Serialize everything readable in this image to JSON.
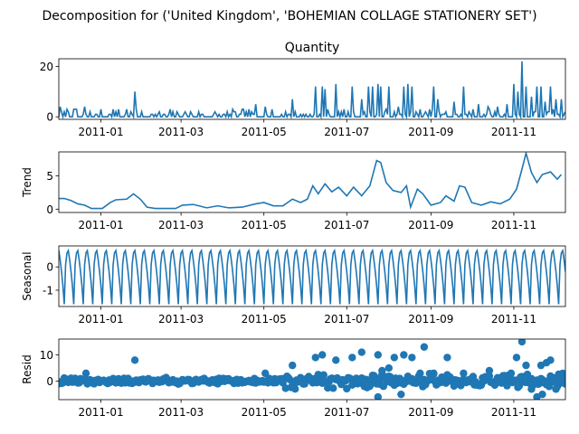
{
  "figure": {
    "suptitle": "Decomposition for ('United Kingdom', 'BOHEMIAN COLLAGE STATIONERY SET')",
    "line_color": "#1f77b4",
    "x_tick_labels": [
      "2011-01",
      "2011-03",
      "2011-05",
      "2011-07",
      "2011-09",
      "2011-11"
    ]
  },
  "chart_data": [
    {
      "type": "line",
      "title": "Quantity",
      "ylabel": "",
      "x_start": "2010-12-01",
      "x_end": "2011-12-09",
      "xlim": [
        "2010-12-01",
        "2011-12-09"
      ],
      "ylim": [
        -1,
        23
      ],
      "yticks": [
        0,
        20
      ],
      "grid": false,
      "notes": "Daily quantity, mostly 0-4 with spikes.",
      "peaks": [
        {
          "x": "2010-12-02",
          "y": 4
        },
        {
          "x": "2010-12-07",
          "y": 3
        },
        {
          "x": "2010-12-12",
          "y": 3
        },
        {
          "x": "2010-12-20",
          "y": 4
        },
        {
          "x": "2011-01-10",
          "y": 3
        },
        {
          "x": "2011-01-14",
          "y": 3
        },
        {
          "x": "2011-01-20",
          "y": 3
        },
        {
          "x": "2011-01-26",
          "y": 10
        },
        {
          "x": "2011-02-10",
          "y": 1
        },
        {
          "x": "2011-03-04",
          "y": 2
        },
        {
          "x": "2011-03-08",
          "y": 2
        },
        {
          "x": "2011-04-10",
          "y": 2
        },
        {
          "x": "2011-04-25",
          "y": 5
        },
        {
          "x": "2011-05-02",
          "y": 4
        },
        {
          "x": "2011-05-17",
          "y": 2
        },
        {
          "x": "2011-05-22",
          "y": 7
        },
        {
          "x": "2011-06-01",
          "y": 1
        },
        {
          "x": "2011-06-08",
          "y": 12
        },
        {
          "x": "2011-06-13",
          "y": 12
        },
        {
          "x": "2011-06-15",
          "y": 11
        },
        {
          "x": "2011-06-23",
          "y": 13
        },
        {
          "x": "2011-07-05",
          "y": 12
        },
        {
          "x": "2011-07-12",
          "y": 7
        },
        {
          "x": "2011-07-17",
          "y": 12
        },
        {
          "x": "2011-07-20",
          "y": 12
        },
        {
          "x": "2011-07-24",
          "y": 13
        },
        {
          "x": "2011-07-26",
          "y": 12
        },
        {
          "x": "2011-08-01",
          "y": 12
        },
        {
          "x": "2011-08-08",
          "y": 4
        },
        {
          "x": "2011-08-12",
          "y": 12
        },
        {
          "x": "2011-08-15",
          "y": 13
        },
        {
          "x": "2011-08-18",
          "y": 12
        },
        {
          "x": "2011-08-24",
          "y": 3
        },
        {
          "x": "2011-09-03",
          "y": 12
        },
        {
          "x": "2011-09-06",
          "y": 7
        },
        {
          "x": "2011-09-12",
          "y": 2
        },
        {
          "x": "2011-09-18",
          "y": 6
        },
        {
          "x": "2011-09-25",
          "y": 12
        },
        {
          "x": "2011-10-02",
          "y": 3
        },
        {
          "x": "2011-10-06",
          "y": 5
        },
        {
          "x": "2011-10-13",
          "y": 4
        },
        {
          "x": "2011-10-20",
          "y": 4
        },
        {
          "x": "2011-10-27",
          "y": 5
        },
        {
          "x": "2011-11-01",
          "y": 13
        },
        {
          "x": "2011-11-04",
          "y": 10
        },
        {
          "x": "2011-11-07",
          "y": 22
        },
        {
          "x": "2011-11-10",
          "y": 12
        },
        {
          "x": "2011-11-14",
          "y": 8
        },
        {
          "x": "2011-11-18",
          "y": 12
        },
        {
          "x": "2011-11-21",
          "y": 12
        },
        {
          "x": "2011-11-24",
          "y": 6
        },
        {
          "x": "2011-11-28",
          "y": 12
        },
        {
          "x": "2011-12-02",
          "y": 7
        },
        {
          "x": "2011-12-06",
          "y": 7
        }
      ]
    },
    {
      "type": "line",
      "title": "",
      "ylabel": "Trend",
      "xlim": [
        "2010-12-01",
        "2011-12-09"
      ],
      "ylim": [
        -0.5,
        8.6
      ],
      "yticks": [
        0,
        5
      ],
      "grid": false,
      "points": [
        {
          "x": "2010-12-01",
          "y": 1.6
        },
        {
          "x": "2010-12-05",
          "y": 1.6
        },
        {
          "x": "2010-12-10",
          "y": 1.3
        },
        {
          "x": "2010-12-15",
          "y": 0.8
        },
        {
          "x": "2010-12-20",
          "y": 0.6
        },
        {
          "x": "2010-12-25",
          "y": 0.1
        },
        {
          "x": "2011-01-02",
          "y": 0.1
        },
        {
          "x": "2011-01-08",
          "y": 1.0
        },
        {
          "x": "2011-01-12",
          "y": 1.4
        },
        {
          "x": "2011-01-20",
          "y": 1.5
        },
        {
          "x": "2011-01-25",
          "y": 2.3
        },
        {
          "x": "2011-01-30",
          "y": 1.5
        },
        {
          "x": "2011-02-04",
          "y": 0.3
        },
        {
          "x": "2011-02-10",
          "y": 0.1
        },
        {
          "x": "2011-02-25",
          "y": 0.1
        },
        {
          "x": "2011-03-02",
          "y": 0.6
        },
        {
          "x": "2011-03-10",
          "y": 0.7
        },
        {
          "x": "2011-03-20",
          "y": 0.2
        },
        {
          "x": "2011-03-28",
          "y": 0.5
        },
        {
          "x": "2011-04-05",
          "y": 0.2
        },
        {
          "x": "2011-04-15",
          "y": 0.3
        },
        {
          "x": "2011-04-25",
          "y": 0.8
        },
        {
          "x": "2011-05-01",
          "y": 1.0
        },
        {
          "x": "2011-05-08",
          "y": 0.5
        },
        {
          "x": "2011-05-15",
          "y": 0.5
        },
        {
          "x": "2011-05-22",
          "y": 1.5
        },
        {
          "x": "2011-05-28",
          "y": 1.0
        },
        {
          "x": "2011-06-02",
          "y": 1.5
        },
        {
          "x": "2011-06-06",
          "y": 3.5
        },
        {
          "x": "2011-06-10",
          "y": 2.3
        },
        {
          "x": "2011-06-15",
          "y": 3.8
        },
        {
          "x": "2011-06-20",
          "y": 2.6
        },
        {
          "x": "2011-06-25",
          "y": 3.3
        },
        {
          "x": "2011-07-01",
          "y": 2.0
        },
        {
          "x": "2011-07-06",
          "y": 3.3
        },
        {
          "x": "2011-07-12",
          "y": 2.0
        },
        {
          "x": "2011-07-18",
          "y": 3.5
        },
        {
          "x": "2011-07-23",
          "y": 7.3
        },
        {
          "x": "2011-07-26",
          "y": 7.0
        },
        {
          "x": "2011-07-30",
          "y": 4.0
        },
        {
          "x": "2011-08-04",
          "y": 2.8
        },
        {
          "x": "2011-08-10",
          "y": 2.5
        },
        {
          "x": "2011-08-14",
          "y": 3.5
        },
        {
          "x": "2011-08-17",
          "y": 0.3
        },
        {
          "x": "2011-08-22",
          "y": 3.0
        },
        {
          "x": "2011-08-26",
          "y": 2.3
        },
        {
          "x": "2011-09-01",
          "y": 0.6
        },
        {
          "x": "2011-09-08",
          "y": 1.0
        },
        {
          "x": "2011-09-12",
          "y": 2.0
        },
        {
          "x": "2011-09-18",
          "y": 1.2
        },
        {
          "x": "2011-09-22",
          "y": 3.5
        },
        {
          "x": "2011-09-26",
          "y": 3.3
        },
        {
          "x": "2011-10-01",
          "y": 1.0
        },
        {
          "x": "2011-10-08",
          "y": 0.6
        },
        {
          "x": "2011-10-15",
          "y": 1.1
        },
        {
          "x": "2011-10-22",
          "y": 0.8
        },
        {
          "x": "2011-10-29",
          "y": 1.5
        },
        {
          "x": "2011-11-03",
          "y": 3.0
        },
        {
          "x": "2011-11-07",
          "y": 6.0
        },
        {
          "x": "2011-11-10",
          "y": 8.4
        },
        {
          "x": "2011-11-14",
          "y": 5.5
        },
        {
          "x": "2011-11-18",
          "y": 4.0
        },
        {
          "x": "2011-11-22",
          "y": 5.2
        },
        {
          "x": "2011-11-28",
          "y": 5.6
        },
        {
          "x": "2011-12-03",
          "y": 4.5
        },
        {
          "x": "2011-12-06",
          "y": 5.2
        }
      ]
    },
    {
      "type": "line",
      "title": "",
      "ylabel": "Seasonal",
      "xlim": [
        "2010-12-01",
        "2011-12-09"
      ],
      "ylim": [
        -1.7,
        0.9
      ],
      "yticks": [
        -1,
        0
      ],
      "grid": false,
      "period_days": 7,
      "pattern": [
        0.7,
        0.3,
        -0.2,
        -0.8,
        -1.6,
        0.1,
        0.6
      ],
      "x_start": "2010-12-01",
      "x_end": "2011-12-09"
    },
    {
      "type": "scatter",
      "title": "",
      "ylabel": "Resid",
      "xlim": [
        "2010-12-01",
        "2011-12-09"
      ],
      "ylim": [
        -7,
        16
      ],
      "yticks": [
        0,
        10
      ],
      "grid": false,
      "x_start": "2010-12-01",
      "x_end": "2011-12-09",
      "zero_line": true,
      "outliers": [
        {
          "x": "2010-12-21",
          "y": 3
        },
        {
          "x": "2011-01-26",
          "y": 8
        },
        {
          "x": "2011-05-02",
          "y": 3
        },
        {
          "x": "2011-05-22",
          "y": 6
        },
        {
          "x": "2011-06-08",
          "y": 9
        },
        {
          "x": "2011-06-13",
          "y": 10
        },
        {
          "x": "2011-06-23",
          "y": 8
        },
        {
          "x": "2011-07-05",
          "y": 9
        },
        {
          "x": "2011-07-12",
          "y": 11
        },
        {
          "x": "2011-07-24",
          "y": 10
        },
        {
          "x": "2011-07-27",
          "y": 4
        },
        {
          "x": "2011-08-01",
          "y": 5
        },
        {
          "x": "2011-08-05",
          "y": 9
        },
        {
          "x": "2011-08-12",
          "y": 10
        },
        {
          "x": "2011-08-18",
          "y": 9
        },
        {
          "x": "2011-08-24",
          "y": 3
        },
        {
          "x": "2011-08-27",
          "y": 13
        },
        {
          "x": "2011-09-03",
          "y": 3
        },
        {
          "x": "2011-09-13",
          "y": 9
        },
        {
          "x": "2011-09-25",
          "y": 3
        },
        {
          "x": "2011-10-14",
          "y": 4
        },
        {
          "x": "2011-10-30",
          "y": 3
        },
        {
          "x": "2011-11-03",
          "y": 9
        },
        {
          "x": "2011-11-07",
          "y": 15
        },
        {
          "x": "2011-11-10",
          "y": 6
        },
        {
          "x": "2011-11-14",
          "y": -3
        },
        {
          "x": "2011-11-21",
          "y": 6
        },
        {
          "x": "2011-11-25",
          "y": 7
        },
        {
          "x": "2011-11-28",
          "y": 8
        },
        {
          "x": "2011-12-06",
          "y": 1
        },
        {
          "x": "2011-07-24",
          "y": -6
        },
        {
          "x": "2011-08-10",
          "y": -5
        },
        {
          "x": "2011-11-18",
          "y": -6
        },
        {
          "x": "2011-11-22",
          "y": -5
        },
        {
          "x": "2011-12-02",
          "y": -3
        }
      ]
    }
  ]
}
